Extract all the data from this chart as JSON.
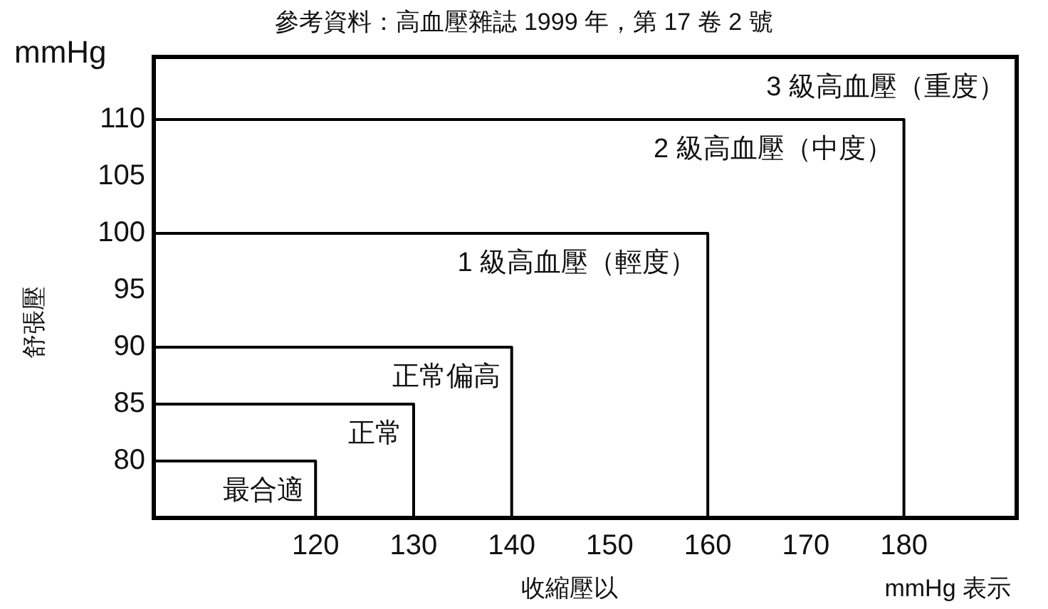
{
  "chart_data": {
    "type": "line",
    "title": "參考資料：高血壓雜誌 1999 年，第 17 卷 2 號",
    "xlabel": "收縮壓以",
    "ylabel": "舒張壓",
    "xlim": [
      103.5,
      191.5
    ],
    "xticks": [
      120,
      130,
      140,
      150,
      160,
      170,
      180
    ],
    "ylim": [
      75,
      115.5
    ],
    "yticks": [
      80,
      85,
      90,
      95,
      100,
      105,
      110
    ],
    "grid": false,
    "legend": false,
    "marker": "none",
    "line_style": "solid",
    "series": [
      {
        "name": "最合適",
        "color": "#000000",
        "x": [
          103.5,
          120,
          120
        ],
        "values": [
          80,
          80,
          75
        ]
      },
      {
        "name": "正常",
        "color": "#000000",
        "x": [
          103.5,
          130,
          130
        ],
        "values": [
          85,
          85,
          75
        ]
      },
      {
        "name": "正常偏高",
        "color": "#000000",
        "x": [
          103.5,
          140,
          140
        ],
        "values": [
          90,
          90,
          75
        ]
      },
      {
        "name": "1 級高血壓（輕度）",
        "color": "#000000",
        "x": [
          103.5,
          160,
          160
        ],
        "values": [
          100,
          100,
          75
        ]
      },
      {
        "name": "2 級高血壓（中度）",
        "color": "#000000",
        "x": [
          103.5,
          180,
          180
        ],
        "values": [
          110,
          110,
          75
        ]
      }
    ],
    "annotations": [
      "3 級高血壓（重度）",
      "mmHg",
      "mmHg 表示"
    ]
  }
}
